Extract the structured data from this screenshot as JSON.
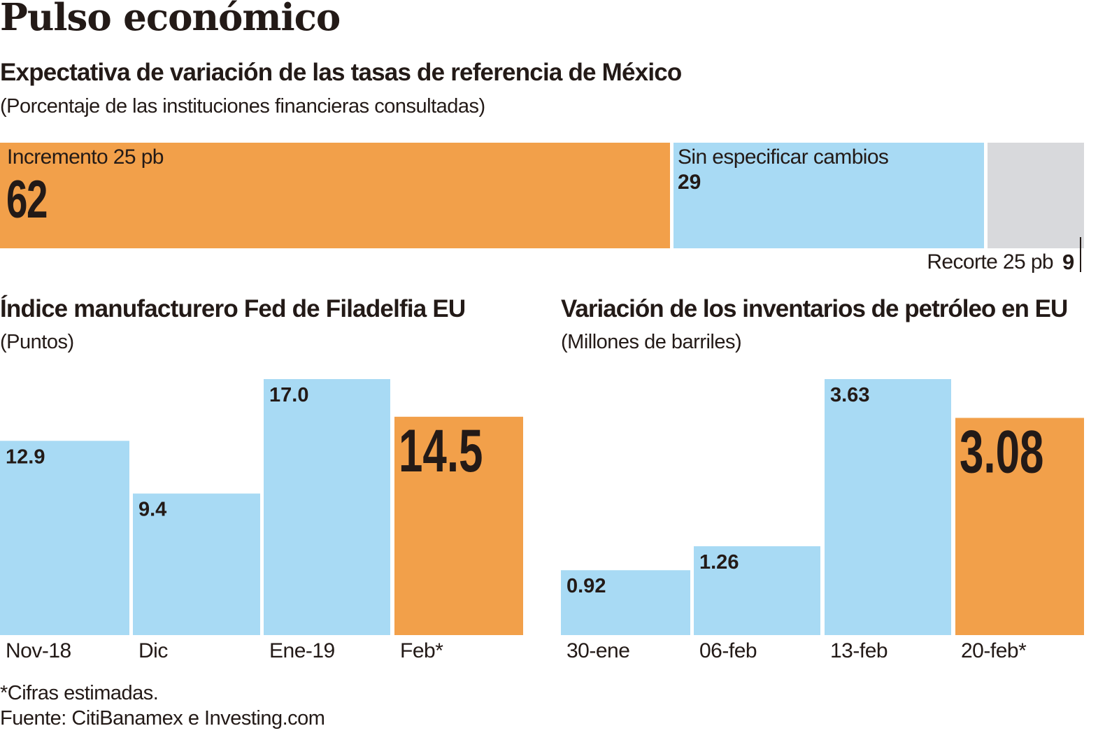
{
  "colors": {
    "orange": "#f2a04a",
    "blue": "#a8daf4",
    "gray": "#d8d9dc",
    "text": "#231a17"
  },
  "header": {
    "title": "Pulso económico",
    "subtitle": "Expectativa de variación de las tasas de referencia de México",
    "unit": "(Porcentaje de las instituciones financieras consultadas)"
  },
  "footer": {
    "note": "*Cifras estimadas.",
    "source": "Fuente: CitiBanamex e Investing.com"
  },
  "chart_data": [
    {
      "type": "bar",
      "orientation": "stacked-horizontal",
      "title": "Expectativa de variación de las tasas de referencia de México",
      "subtitle": "(Porcentaje de las instituciones financieras consultadas)",
      "categories": [
        "Incremento 25 pb",
        "Sin especificar cambios",
        "Recorte 25 pb"
      ],
      "values": [
        62,
        29,
        9
      ],
      "value_labels": [
        "62",
        "29",
        "9"
      ],
      "colors": [
        "#f2a04a",
        "#a8daf4",
        "#d8d9dc"
      ]
    },
    {
      "type": "bar",
      "title": "Índice manufacturero Fed de Filadelfia EU",
      "subtitle": "(Puntos)",
      "categories": [
        "Nov-18",
        "Dic",
        "Ene-19",
        "Feb*"
      ],
      "values": [
        12.9,
        9.4,
        17.0,
        14.5
      ],
      "value_labels": [
        "12.9",
        "9.4",
        "17.0",
        "14.5"
      ],
      "highlight_index": 3,
      "ylim": [
        0,
        17.0
      ],
      "grid": false
    },
    {
      "type": "bar",
      "title": "Variación de los inventarios de petróleo en EU",
      "subtitle": "(Millones de barriles)",
      "categories": [
        "30-ene",
        "06-feb",
        "13-feb",
        "20-feb*"
      ],
      "values": [
        0.92,
        1.26,
        3.63,
        3.08
      ],
      "value_labels": [
        "0.92",
        "1.26",
        "3.63",
        "3.08"
      ],
      "highlight_index": 3,
      "ylim": [
        0,
        3.63
      ],
      "grid": false
    }
  ]
}
